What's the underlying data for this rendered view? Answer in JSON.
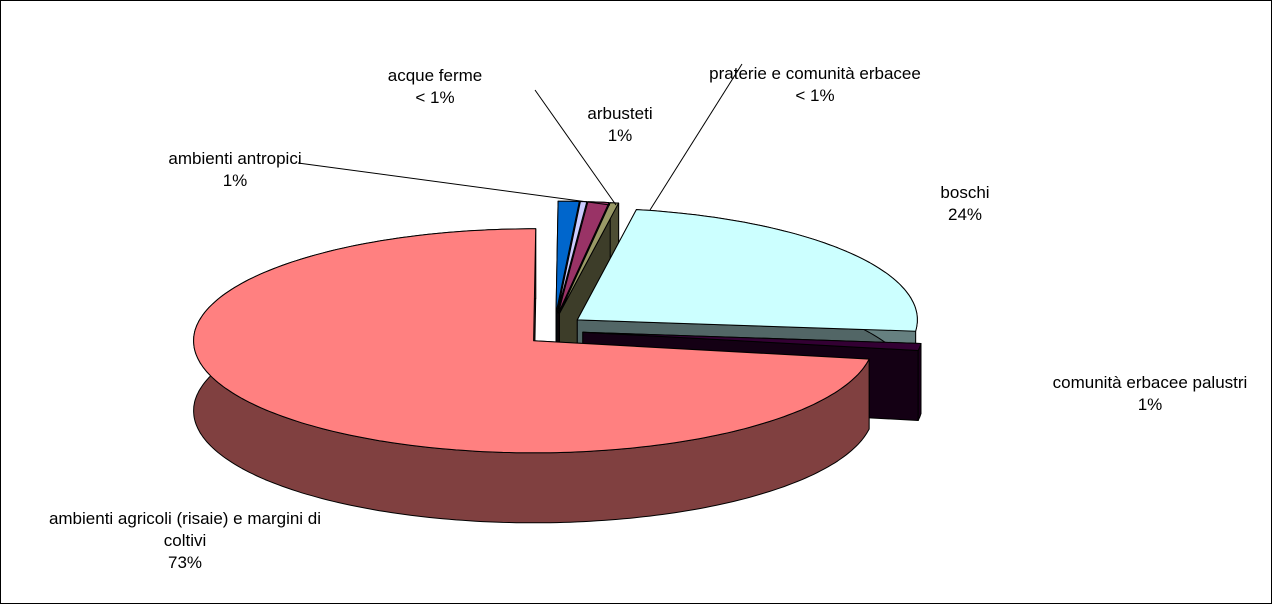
{
  "chart_data": {
    "type": "pie",
    "categories": [
      "boschi",
      "comunità erbacee palustri",
      "ambienti agricoli (risaie) e margini di coltivi",
      "ambienti antropici",
      "acque ferme",
      "arbusteti",
      "praterie e comunità erbacee"
    ],
    "values": [
      24,
      1,
      73,
      1,
      0.3,
      1,
      0.4
    ],
    "value_labels": [
      "24%",
      "1%",
      "73%",
      "1%",
      "< 1%",
      "1%",
      "< 1%"
    ],
    "colors": [
      "#ccffff",
      "#330033",
      "#ff8080",
      "#0066cc",
      "#ccccff",
      "#993366",
      "#999966"
    ]
  }
}
